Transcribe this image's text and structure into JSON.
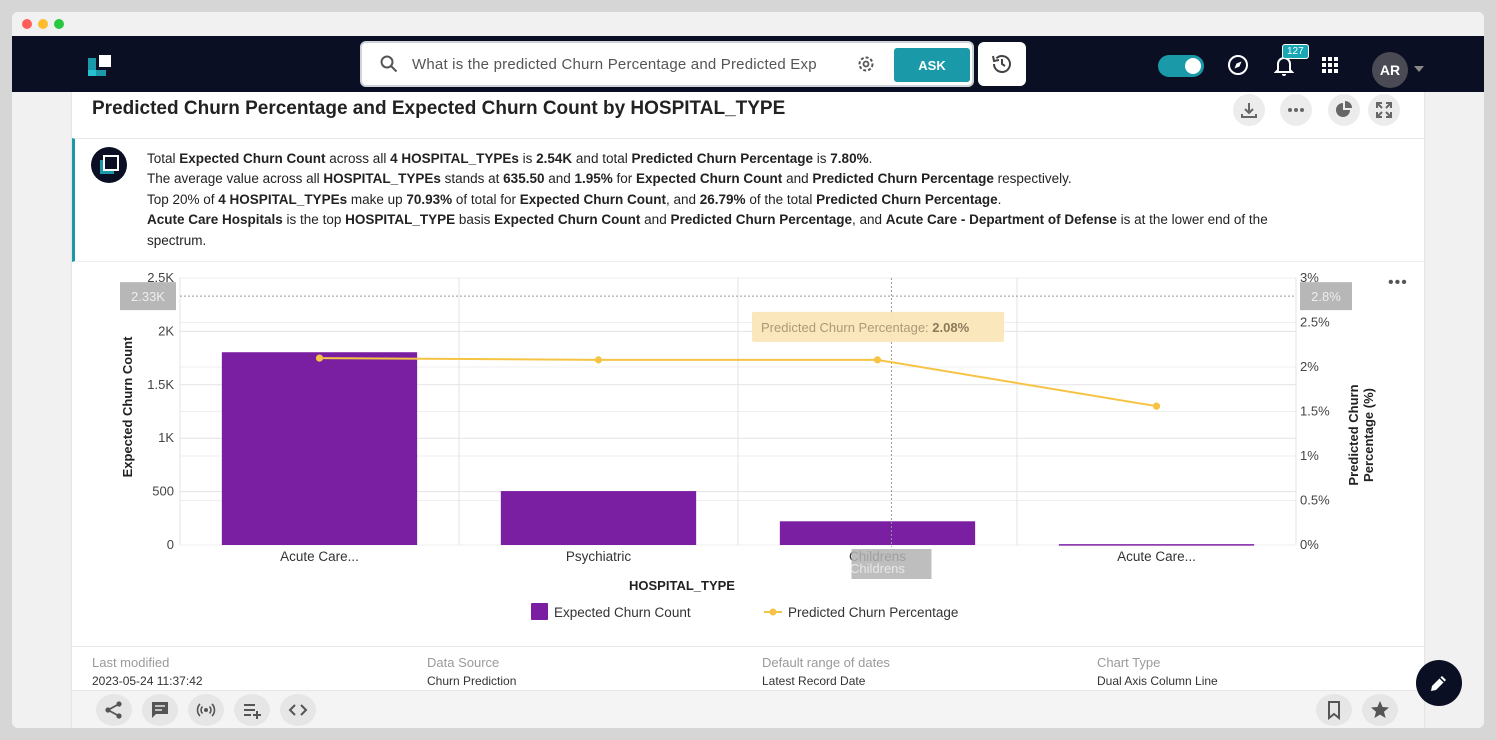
{
  "window": {
    "dot_colors": [
      "#ff5f57",
      "#febc2e",
      "#28c840"
    ]
  },
  "topnav": {
    "search_query": "What is the predicted Churn Percentage and Predicted Exp",
    "ask_label": "ASK",
    "notification_count": "127",
    "avatar_initials": "AR",
    "brand_color": "#1a9aa8"
  },
  "card": {
    "title": "Predicted Churn Percentage and Expected Churn Count by HOSPITAL_TYPE"
  },
  "summary": {
    "l1": {
      "a": "Total ",
      "b": "Expected Churn Count",
      "c": " across all ",
      "d": "4 HOSPITAL_TYPEs",
      "e": " is ",
      "f": "2.54K",
      "g": " and total ",
      "h": "Predicted Churn Percentage",
      "i": " is ",
      "j": "7.80%",
      "k": "."
    },
    "l2": {
      "a": "The average value across all ",
      "b": "HOSPITAL_TYPEs",
      "c": " stands at ",
      "d": "635.50",
      "e": " and ",
      "f": "1.95%",
      "g": " for ",
      "h": "Expected Churn Count",
      "i": " and ",
      "j": "Predicted Churn Percentage",
      "k": " respectively."
    },
    "l3": {
      "a": "Top 20% of ",
      "b": "4 HOSPITAL_TYPEs",
      "c": " make up ",
      "d": "70.93%",
      "e": " of total for ",
      "f": "Expected Churn Count",
      "g": ", and ",
      "h": "26.79%",
      "i": " of the total ",
      "j": "Predicted Churn Percentage",
      "k": "."
    },
    "l4": {
      "a": "Acute Care Hospitals",
      "b": " is the top ",
      "c": "HOSPITAL_TYPE",
      "d": " basis ",
      "e": "Expected Churn Count",
      "f": " and ",
      "g": "Predicted Churn Percentage",
      "h": ", and ",
      "i": "Acute Care - Department of Defense",
      "j": " is at the lower end of the spectrum."
    }
  },
  "chart_data": {
    "type": "bar",
    "categories": [
      "Acute Care...",
      "Psychiatric",
      "Childrens",
      "Acute Care..."
    ],
    "series": [
      {
        "name": "Expected Churn Count",
        "type": "bar",
        "axis": "left",
        "values": [
          1805,
          505,
          222,
          8
        ],
        "color": "#7b1fa2"
      },
      {
        "name": "Predicted Churn Percentage",
        "type": "line",
        "axis": "right",
        "values": [
          2.1,
          2.08,
          2.08,
          1.56
        ],
        "color": "#f6c445"
      }
    ],
    "xlabel": "HOSPITAL_TYPE",
    "ylabel": "Expected Churn Count",
    "ylabel_right": "Predicted Churn Percentage (%)",
    "ylim": [
      0,
      2500
    ],
    "ylim_right": [
      0,
      3
    ],
    "yticks": [
      "0",
      "500",
      "1K",
      "1.5K",
      "2K",
      "2.5K"
    ],
    "yticks_right": [
      "0%",
      "0.5%",
      "1%",
      "1.5%",
      "2%",
      "2.5%",
      "3%"
    ],
    "crosshair": {
      "left_value": 2330,
      "left_label": "2.33K",
      "right_label": "2.8%",
      "category_label": "Childrens"
    },
    "tooltip": {
      "label": "Predicted Churn Percentage: ",
      "value": "2.08%"
    },
    "grid": true,
    "legend": "bottom"
  },
  "meta": [
    {
      "label": "Last modified",
      "value": "2023-05-24 11:37:42"
    },
    {
      "label": "Data Source",
      "value": "Churn Prediction"
    },
    {
      "label": "Default range of dates",
      "value": "Latest Record Date"
    },
    {
      "label": "Chart Type",
      "value": "Dual Axis Column Line"
    }
  ]
}
